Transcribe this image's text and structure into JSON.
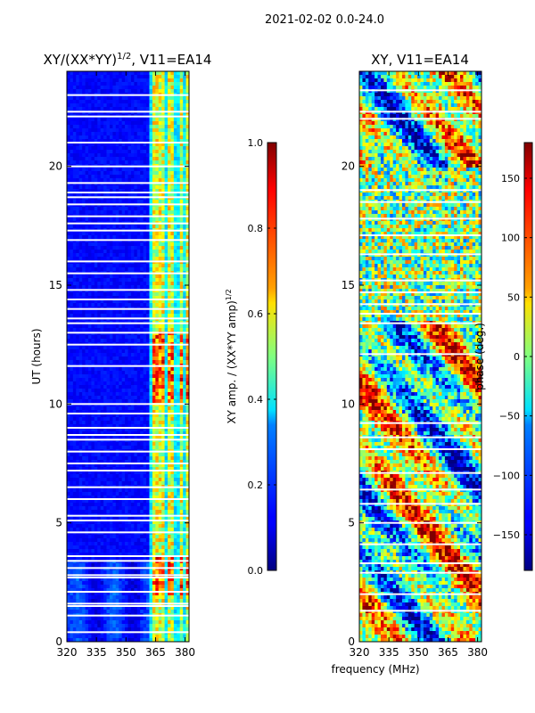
{
  "figure": {
    "suptitle": "2021-02-02 0.0-24.0",
    "xlabel": "frequency (MHz)"
  },
  "chart_data": [
    {
      "type": "heatmap",
      "title": "XY/(XX*YY)",
      "title_sup": "1/2",
      "title_tail": ", V11=EA14",
      "xlabel": "",
      "ylabel": "UT (hours)",
      "xlim": [
        320,
        382
      ],
      "ylim": [
        0,
        24
      ],
      "xticks": [
        320,
        335,
        350,
        365,
        380
      ],
      "yticks": [
        0,
        5,
        10,
        15,
        20
      ],
      "bright_channels_mhz": [
        365,
        368,
        373,
        378,
        381
      ],
      "gaps_ut_hours": [
        0.4,
        1.1,
        1.5,
        1.6,
        2.1,
        2.7,
        2.8,
        3.1,
        3.4,
        3.6,
        4.6,
        5.1,
        5.3,
        6.0,
        6.5,
        7.2,
        7.5,
        8.0,
        8.5,
        8.7,
        9.0,
        9.6,
        10.0,
        11.6,
        12.5,
        13.0,
        13.4,
        13.6,
        14.0,
        14.4,
        14.8,
        15.5,
        16.0,
        16.9,
        17.3,
        17.6,
        17.9,
        18.4,
        18.7,
        18.9,
        19.3,
        20.0,
        21.0,
        22.1,
        22.3,
        23.0
      ],
      "colorbar": {
        "label": "XY amp. / (XX*YY amp)",
        "label_sup": "1/2",
        "range": [
          0.0,
          1.0
        ],
        "ticks": [
          "0.0",
          "0.2",
          "0.4",
          "0.6",
          "0.8",
          "1.0"
        ]
      }
    },
    {
      "type": "heatmap",
      "title": "XY, V11=EA14",
      "xlabel": "",
      "ylabel": "",
      "xlim": [
        320,
        382
      ],
      "ylim": [
        0,
        24
      ],
      "xticks": [
        320,
        335,
        350,
        365,
        380
      ],
      "yticks": [
        0,
        5,
        10,
        15,
        20
      ],
      "gaps_ut_hours": [
        1.3,
        2.0,
        2.9,
        3.3,
        4.1,
        5.0,
        5.8,
        6.4,
        7.1,
        8.1,
        8.6,
        9.2,
        12.1,
        13.4,
        13.8,
        14.2,
        14.7,
        15.2,
        16.3,
        17.1,
        17.8,
        18.5,
        19.0,
        22.0,
        22.3,
        23.2
      ],
      "colorbar": {
        "label": "phase (deg.)",
        "range": [
          -180,
          180
        ],
        "ticks": [
          "−150",
          "−100",
          "−50",
          "0",
          "50",
          "100",
          "150"
        ]
      }
    }
  ]
}
